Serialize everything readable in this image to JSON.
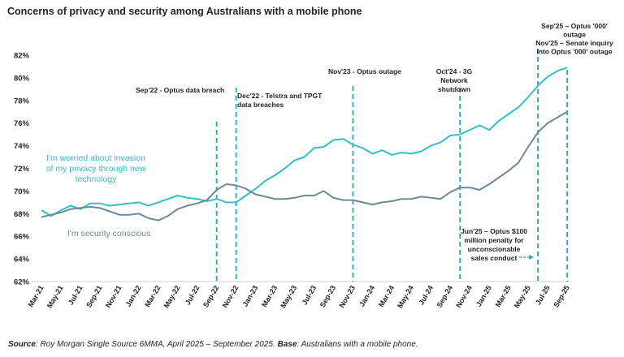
{
  "chart_data": {
    "type": "line",
    "title": "Concerns of privacy and security among Australians with a mobile phone",
    "ylim": [
      62,
      82
    ],
    "yticks": [
      "62%",
      "64%",
      "66%",
      "68%",
      "70%",
      "72%",
      "74%",
      "76%",
      "78%",
      "80%",
      "82%"
    ],
    "xticks": [
      "Mar-21",
      "May-21",
      "Jul-21",
      "Sep-21",
      "Nov-21",
      "Jan-22",
      "Mar-22",
      "May-22",
      "Jul-22",
      "Sep-22",
      "Nov-22",
      "Jan-23",
      "Mar-23",
      "May-23",
      "Jul-23",
      "Sep-23",
      "Nov-23",
      "Jan-24",
      "Mar-24",
      "May-24",
      "Jul-24",
      "Sep-24",
      "Nov-24",
      "Jan-25",
      "Mar-25",
      "May-25",
      "Jul-25",
      "Sep-25"
    ],
    "x": [
      "Mar-21",
      "Apr-21",
      "May-21",
      "Jun-21",
      "Jul-21",
      "Aug-21",
      "Sep-21",
      "Oct-21",
      "Nov-21",
      "Dec-21",
      "Jan-22",
      "Feb-22",
      "Mar-22",
      "Apr-22",
      "May-22",
      "Jun-22",
      "Jul-22",
      "Aug-22",
      "Sep-22",
      "Oct-22",
      "Nov-22",
      "Dec-22",
      "Jan-23",
      "Feb-23",
      "Mar-23",
      "Apr-23",
      "May-23",
      "Jun-23",
      "Jul-23",
      "Aug-23",
      "Sep-23",
      "Oct-23",
      "Nov-23",
      "Dec-23",
      "Jan-24",
      "Feb-24",
      "Mar-24",
      "Apr-24",
      "May-24",
      "Jun-24",
      "Jul-24",
      "Aug-24",
      "Sep-24",
      "Oct-24",
      "Nov-24",
      "Dec-24",
      "Jan-25",
      "Feb-25",
      "Mar-25",
      "Apr-25",
      "May-25",
      "Jun-25",
      "Jul-25",
      "Aug-25",
      "Sep-25"
    ],
    "series": [
      {
        "name": "I'm worried about invasion of my privacy through new technology",
        "color": "#33bfcc",
        "values": [
          68.3,
          67.8,
          68.3,
          68.7,
          68.4,
          68.9,
          68.9,
          68.7,
          68.8,
          68.9,
          69.0,
          68.7,
          69.0,
          69.3,
          69.6,
          69.4,
          69.3,
          69.1,
          69.3,
          69.0,
          69.0,
          69.6,
          70.2,
          70.9,
          71.4,
          72.0,
          72.7,
          73.0,
          73.8,
          73.9,
          74.5,
          74.6,
          74.1,
          73.8,
          73.3,
          73.6,
          73.2,
          73.4,
          73.3,
          73.5,
          74.0,
          74.3,
          74.9,
          75.0,
          75.4,
          75.8,
          75.4,
          76.2,
          76.8,
          77.4,
          78.3,
          79.3,
          80.1,
          80.6,
          80.9
        ]
      },
      {
        "name": "I'm security conscious",
        "color": "#6a8c9a",
        "values": [
          67.7,
          67.9,
          68.1,
          68.4,
          68.5,
          68.6,
          68.5,
          68.2,
          67.9,
          67.9,
          68.0,
          67.6,
          67.4,
          67.8,
          68.4,
          68.7,
          68.9,
          69.2,
          70.1,
          70.6,
          70.5,
          70.2,
          69.7,
          69.5,
          69.3,
          69.3,
          69.4,
          69.6,
          69.6,
          70.0,
          69.4,
          69.2,
          69.2,
          69.0,
          68.8,
          69.0,
          69.1,
          69.3,
          69.3,
          69.5,
          69.4,
          69.3,
          69.9,
          70.3,
          70.3,
          70.1,
          70.6,
          71.2,
          71.8,
          72.5,
          73.9,
          75.2,
          76.0,
          76.5,
          77.0
        ]
      }
    ],
    "events": [
      {
        "x": "Sep-22",
        "label": [
          "Sep'22 - Optus data breach"
        ]
      },
      {
        "x": "Nov-22",
        "label": [
          "Dec'22 - Telstra and TPGT",
          "data breaches"
        ]
      },
      {
        "x": "Nov-23",
        "label": [
          "Nov'23 - Optus outage"
        ]
      },
      {
        "x": "Oct-24",
        "label": [
          "Oct'24 - 3G",
          "Network",
          "shutdown"
        ]
      },
      {
        "x": "Jun-25",
        "label": [
          "Jun'25 – Optus $100",
          "million penalty for",
          "unconscionable",
          "sales conduct"
        ]
      },
      {
        "x": "Sep-25",
        "label": [
          "Sep'25 – Optus '000'",
          "outage",
          "Nov'25 – Senate inquiry",
          "into Optus '000' outage"
        ]
      }
    ],
    "grid": false,
    "legend": "inline labels"
  },
  "source": {
    "label": "Source",
    "text": ": Roy Morgan Single Source 6MMA, April 2025 – September 2025. ",
    "base_label": "Base",
    "base_text": ": Australians with a mobile phone."
  }
}
